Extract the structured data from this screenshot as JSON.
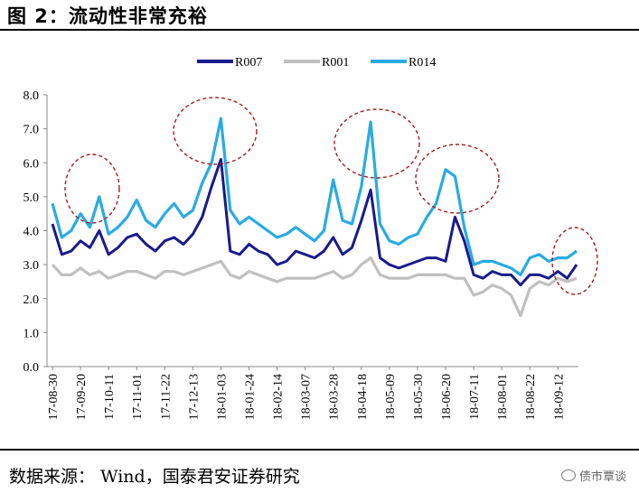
{
  "header": {
    "title": "图 2：流动性非常充裕"
  },
  "footer": {
    "source": "数据来源： Wind，国泰君安证券研究"
  },
  "watermark": {
    "text": "债市覃谈"
  },
  "colors": {
    "R007": "#1a1a8c",
    "R001": "#c0c0c0",
    "R014": "#29abe2",
    "annotation": "#a61c1c"
  },
  "annotations": {
    "shape": "dashed-ellipse",
    "count": 5,
    "highlighted_spikes": [
      "2017-09 R014 spike",
      "2018-01 R014 spike",
      "2018-04 R014 spike",
      "2018-06 R014 spike",
      "2018-09 end-of-series"
    ]
  },
  "chart_data": {
    "type": "line",
    "title": "",
    "xlabel": "",
    "ylabel": "",
    "ylim": [
      0,
      8
    ],
    "yticks": [
      "0.0",
      "1.0",
      "2.0",
      "3.0",
      "4.0",
      "5.0",
      "6.0",
      "7.0",
      "8.0"
    ],
    "xticks": [
      "17-08-30",
      "17-09-20",
      "17-10-11",
      "17-11-01",
      "17-11-22",
      "17-12-13",
      "18-01-03",
      "18-01-24",
      "18-02-14",
      "18-03-07",
      "18-03-28",
      "18-04-18",
      "18-05-09",
      "18-05-30",
      "18-06-20",
      "18-07-11",
      "18-08-01",
      "18-08-22",
      "18-09-12"
    ],
    "legend_position": "top-center",
    "grid": false,
    "x": [
      "17-08-30",
      "17-09-06",
      "17-09-13",
      "17-09-20",
      "17-09-27",
      "17-10-04",
      "17-10-11",
      "17-10-18",
      "17-10-25",
      "17-11-01",
      "17-11-08",
      "17-11-15",
      "17-11-22",
      "17-11-29",
      "17-12-06",
      "17-12-13",
      "17-12-20",
      "17-12-27",
      "18-01-03",
      "18-01-10",
      "18-01-17",
      "18-01-24",
      "18-01-31",
      "18-02-07",
      "18-02-14",
      "18-02-21",
      "18-02-28",
      "18-03-07",
      "18-03-14",
      "18-03-21",
      "18-03-28",
      "18-04-04",
      "18-04-11",
      "18-04-18",
      "18-04-25",
      "18-05-02",
      "18-05-09",
      "18-05-16",
      "18-05-23",
      "18-05-30",
      "18-06-06",
      "18-06-13",
      "18-06-20",
      "18-06-27",
      "18-07-04",
      "18-07-11",
      "18-07-18",
      "18-07-25",
      "18-08-01",
      "18-08-08",
      "18-08-15",
      "18-08-22",
      "18-08-29",
      "18-09-05",
      "18-09-12",
      "18-09-19",
      "18-09-26"
    ],
    "series": [
      {
        "name": "R007",
        "values": [
          4.2,
          3.3,
          3.4,
          3.7,
          3.5,
          4.0,
          3.3,
          3.5,
          3.8,
          3.9,
          3.6,
          3.4,
          3.7,
          3.8,
          3.6,
          3.9,
          4.4,
          5.3,
          6.1,
          3.4,
          3.3,
          3.6,
          3.4,
          3.3,
          3.0,
          3.1,
          3.4,
          3.3,
          3.2,
          3.4,
          3.8,
          3.3,
          3.5,
          4.3,
          5.2,
          3.2,
          3.0,
          2.9,
          3.0,
          3.1,
          3.2,
          3.2,
          3.1,
          4.4,
          3.7,
          2.7,
          2.6,
          2.8,
          2.7,
          2.7,
          2.4,
          2.7,
          2.7,
          2.6,
          2.8,
          2.6,
          3.0
        ]
      },
      {
        "name": "R001",
        "values": [
          3.0,
          2.7,
          2.7,
          2.9,
          2.7,
          2.8,
          2.6,
          2.7,
          2.8,
          2.8,
          2.7,
          2.6,
          2.8,
          2.8,
          2.7,
          2.8,
          2.9,
          3.0,
          3.1,
          2.7,
          2.6,
          2.8,
          2.7,
          2.6,
          2.5,
          2.6,
          2.6,
          2.6,
          2.6,
          2.7,
          2.8,
          2.6,
          2.7,
          3.0,
          3.2,
          2.7,
          2.6,
          2.6,
          2.6,
          2.7,
          2.7,
          2.7,
          2.7,
          2.6,
          2.6,
          2.1,
          2.2,
          2.4,
          2.3,
          2.1,
          1.5,
          2.3,
          2.5,
          2.4,
          2.6,
          2.5,
          2.6
        ]
      },
      {
        "name": "R014",
        "values": [
          4.8,
          3.8,
          4.0,
          4.5,
          4.1,
          5.0,
          3.9,
          4.1,
          4.4,
          4.9,
          4.3,
          4.1,
          4.5,
          4.8,
          4.4,
          4.6,
          5.4,
          6.0,
          7.3,
          4.6,
          4.2,
          4.4,
          4.2,
          4.0,
          3.8,
          3.9,
          4.1,
          3.9,
          3.7,
          4.0,
          5.5,
          4.3,
          4.2,
          5.3,
          7.2,
          4.2,
          3.7,
          3.6,
          3.8,
          3.9,
          4.4,
          4.8,
          5.8,
          5.6,
          4.1,
          3.0,
          3.1,
          3.1,
          3.0,
          2.9,
          2.7,
          3.2,
          3.3,
          3.1,
          3.2,
          3.2,
          3.4
        ]
      }
    ]
  }
}
